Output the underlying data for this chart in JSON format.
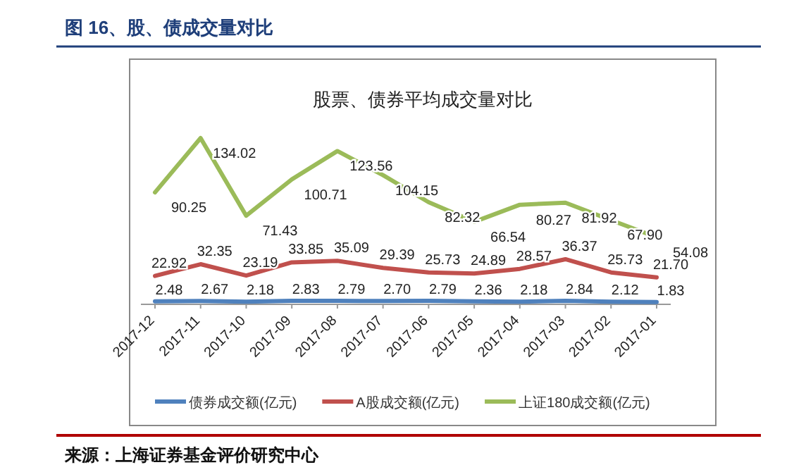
{
  "chart_data": {
    "type": "line",
    "title": "图 16、股、债成交量对比",
    "subtitle": "股票、债券平均成交量对比",
    "categories": [
      "2017-12",
      "2017-11",
      "2017-10",
      "2017-09",
      "2017-08",
      "2017-07",
      "2017-06",
      "2017-05",
      "2017-04",
      "2017-03",
      "2017-02",
      "2017-01"
    ],
    "series": [
      {
        "name": "债券成交额(亿元)",
        "color": "#4f81bd",
        "values": [
          2.48,
          2.67,
          2.18,
          2.83,
          2.79,
          2.7,
          2.79,
          2.36,
          2.18,
          2.84,
          2.12,
          1.83
        ],
        "value_labels": [
          "2.48",
          "2.67",
          "2.18",
          "2.83",
          "2.79",
          "2.70",
          "2.79",
          "2.36",
          "2.18",
          "2.84",
          "2.12",
          "1.83"
        ]
      },
      {
        "name": "A股成交额(亿元)",
        "color": "#c0504d",
        "values": [
          22.92,
          32.35,
          23.19,
          33.85,
          35.09,
          29.39,
          25.73,
          24.89,
          28.57,
          36.37,
          25.73,
          21.7
        ],
        "value_labels": [
          "22.92",
          "32.35",
          "23.19",
          "33.85",
          "35.09",
          "29.39",
          "25.73",
          "24.89",
          "28.57",
          "36.37",
          "25.73",
          "21.70"
        ]
      },
      {
        "name": "上证180成交额(亿元)",
        "color": "#9bbb59",
        "values": [
          90.25,
          134.02,
          71.43,
          100.71,
          123.56,
          104.15,
          82.32,
          66.54,
          80.27,
          81.92,
          67.9,
          54.08
        ],
        "value_labels": [
          "90.25",
          "134.02",
          "71.43",
          "100.71",
          "123.56",
          "104.15",
          "82.32",
          "66.54",
          "80.27",
          "81.92",
          "67.90",
          "54.08"
        ]
      }
    ],
    "legend": "bottom",
    "marker": "none",
    "line_style": "solid",
    "annotations": [
      "来源：上海证券基金评价研究中心"
    ]
  }
}
